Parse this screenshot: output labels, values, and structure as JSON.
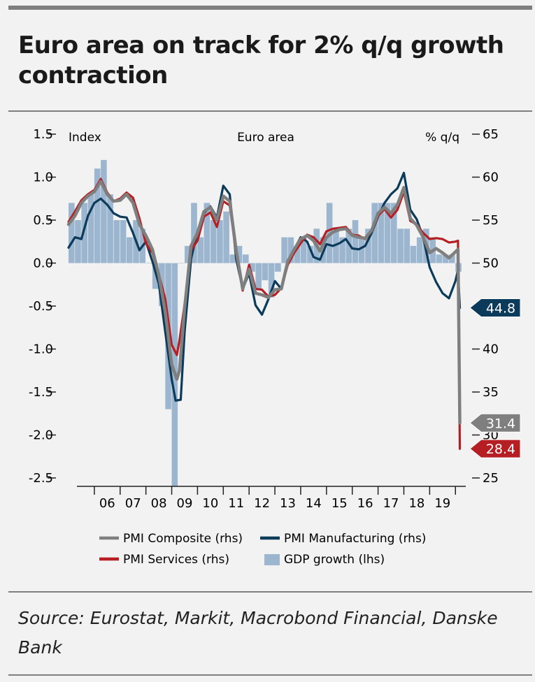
{
  "title": "Euro area on track for 2% q/q growth\ncontraction",
  "source": "Source: Eurostat, Markit, Macrobond Financial, Danske Bank",
  "colors": {
    "composite": "#7f7f7f",
    "manufacturing": "#0b3a5a",
    "services": "#b51f24",
    "gdp": "#9db6cf"
  },
  "chart_data": {
    "type": "line",
    "title": "Euro area",
    "left_axis_label": "Index",
    "right_axis_label": "% q/q",
    "ylim_left": [
      -2.5,
      1.5
    ],
    "ylim_right": [
      25,
      65
    ],
    "yticks_left": [
      {
        "v": 1.5,
        "label": "1.5"
      },
      {
        "v": 1.0,
        "label": "1.0"
      },
      {
        "v": 0.5,
        "label": "0.5"
      },
      {
        "v": 0.0,
        "label": "0.0"
      },
      {
        "v": -0.5,
        "label": "-0.5"
      },
      {
        "v": -1.0,
        "label": "-1.0"
      },
      {
        "v": -1.5,
        "label": "-1.5"
      },
      {
        "v": -2.0,
        "label": "-2.0"
      },
      {
        "v": -2.5,
        "label": "-2.5"
      }
    ],
    "yticks_right": [
      {
        "v": 65,
        "label": "65"
      },
      {
        "v": 60,
        "label": "60"
      },
      {
        "v": 55,
        "label": "55"
      },
      {
        "v": 50,
        "label": "50"
      },
      {
        "v": 45,
        "label": "45"
      },
      {
        "v": 40,
        "label": "40"
      },
      {
        "v": 35,
        "label": "35"
      },
      {
        "v": 30,
        "label": "30"
      },
      {
        "v": 25,
        "label": "25"
      }
    ],
    "x_range": [
      2005.0,
      2020.4
    ],
    "x_ticks": [
      2005,
      2006,
      2007,
      2008,
      2009,
      2010,
      2011,
      2012,
      2013,
      2014,
      2015,
      2016,
      2017,
      2018,
      2019,
      2020
    ],
    "year_labels": [
      "06",
      "07",
      "08",
      "09",
      "10",
      "11",
      "12",
      "13",
      "14",
      "15",
      "16",
      "17",
      "18",
      "19"
    ],
    "series": [
      {
        "name": "PMI Composite (rhs)",
        "key": "composite",
        "axis": "right",
        "points": [
          [
            2005.0,
            54.5
          ],
          [
            2005.25,
            55.5
          ],
          [
            2005.5,
            57.0
          ],
          [
            2005.75,
            57.8
          ],
          [
            2006.0,
            58.3
          ],
          [
            2006.25,
            59.5
          ],
          [
            2006.5,
            58.0
          ],
          [
            2006.75,
            57.2
          ],
          [
            2007.0,
            57.3
          ],
          [
            2007.25,
            58.0
          ],
          [
            2007.5,
            57.0
          ],
          [
            2007.75,
            54.5
          ],
          [
            2008.0,
            53.2
          ],
          [
            2008.25,
            51.6
          ],
          [
            2008.5,
            48.6
          ],
          [
            2008.75,
            44.3
          ],
          [
            2009.0,
            38.2
          ],
          [
            2009.2,
            36.5
          ],
          [
            2009.3,
            37.5
          ],
          [
            2009.5,
            44.8
          ],
          [
            2009.75,
            52.0
          ],
          [
            2010.0,
            53.5
          ],
          [
            2010.25,
            56.0
          ],
          [
            2010.5,
            56.5
          ],
          [
            2010.75,
            55.0
          ],
          [
            2011.0,
            57.8
          ],
          [
            2011.25,
            57.2
          ],
          [
            2011.5,
            51.5
          ],
          [
            2011.75,
            47.0
          ],
          [
            2012.0,
            49.3
          ],
          [
            2012.25,
            46.5
          ],
          [
            2012.5,
            46.3
          ],
          [
            2012.75,
            46.0
          ],
          [
            2013.0,
            46.9
          ],
          [
            2013.25,
            47.0
          ],
          [
            2013.5,
            50.2
          ],
          [
            2013.75,
            51.6
          ],
          [
            2014.0,
            52.8
          ],
          [
            2014.25,
            53.2
          ],
          [
            2014.5,
            52.6
          ],
          [
            2014.75,
            51.4
          ],
          [
            2015.0,
            53.0
          ],
          [
            2015.25,
            53.6
          ],
          [
            2015.5,
            53.9
          ],
          [
            2015.75,
            54.0
          ],
          [
            2016.0,
            53.2
          ],
          [
            2016.25,
            53.0
          ],
          [
            2016.5,
            52.9
          ],
          [
            2016.75,
            53.8
          ],
          [
            2017.0,
            55.8
          ],
          [
            2017.25,
            56.5
          ],
          [
            2017.5,
            55.8
          ],
          [
            2017.75,
            56.8
          ],
          [
            2018.0,
            58.8
          ],
          [
            2018.25,
            55.2
          ],
          [
            2018.5,
            54.4
          ],
          [
            2018.75,
            53.0
          ],
          [
            2019.0,
            51.2
          ],
          [
            2019.25,
            51.7
          ],
          [
            2019.5,
            51.2
          ],
          [
            2019.75,
            50.6
          ],
          [
            2020.0,
            51.3
          ],
          [
            2020.1,
            51.6
          ],
          [
            2020.17,
            31.4
          ]
        ]
      },
      {
        "name": "PMI Manufacturing (rhs)",
        "key": "manufacturing",
        "axis": "right",
        "points": [
          [
            2005.0,
            51.8
          ],
          [
            2005.25,
            53.0
          ],
          [
            2005.5,
            52.8
          ],
          [
            2005.75,
            55.5
          ],
          [
            2006.0,
            57.0
          ],
          [
            2006.25,
            57.5
          ],
          [
            2006.5,
            56.8
          ],
          [
            2006.75,
            55.8
          ],
          [
            2007.0,
            55.4
          ],
          [
            2007.25,
            55.3
          ],
          [
            2007.5,
            53.5
          ],
          [
            2007.75,
            51.5
          ],
          [
            2008.0,
            52.5
          ],
          [
            2008.25,
            50.2
          ],
          [
            2008.5,
            47.6
          ],
          [
            2008.75,
            42.0
          ],
          [
            2009.0,
            36.5
          ],
          [
            2009.15,
            34.0
          ],
          [
            2009.35,
            34.1
          ],
          [
            2009.5,
            42.0
          ],
          [
            2009.75,
            50.5
          ],
          [
            2010.0,
            53.7
          ],
          [
            2010.25,
            55.8
          ],
          [
            2010.5,
            56.6
          ],
          [
            2010.75,
            55.3
          ],
          [
            2011.0,
            59.0
          ],
          [
            2011.25,
            58.0
          ],
          [
            2011.5,
            50.5
          ],
          [
            2011.75,
            47.0
          ],
          [
            2012.0,
            48.8
          ],
          [
            2012.25,
            45.1
          ],
          [
            2012.5,
            44.0
          ],
          [
            2012.75,
            45.8
          ],
          [
            2013.0,
            47.9
          ],
          [
            2013.25,
            47.0
          ],
          [
            2013.5,
            50.3
          ],
          [
            2013.75,
            51.6
          ],
          [
            2014.0,
            53.0
          ],
          [
            2014.25,
            52.5
          ],
          [
            2014.5,
            50.7
          ],
          [
            2014.75,
            50.4
          ],
          [
            2015.0,
            52.2
          ],
          [
            2015.25,
            52.0
          ],
          [
            2015.5,
            52.3
          ],
          [
            2015.75,
            52.8
          ],
          [
            2016.0,
            51.7
          ],
          [
            2016.25,
            51.6
          ],
          [
            2016.5,
            52.0
          ],
          [
            2016.75,
            53.5
          ],
          [
            2017.0,
            55.4
          ],
          [
            2017.25,
            57.0
          ],
          [
            2017.5,
            58.0
          ],
          [
            2017.75,
            58.7
          ],
          [
            2018.0,
            60.5
          ],
          [
            2018.25,
            56.2
          ],
          [
            2018.5,
            55.1
          ],
          [
            2018.75,
            53.0
          ],
          [
            2019.0,
            49.5
          ],
          [
            2019.25,
            47.8
          ],
          [
            2019.5,
            46.5
          ],
          [
            2019.75,
            45.9
          ],
          [
            2020.0,
            47.9
          ],
          [
            2020.1,
            49.2
          ],
          [
            2020.17,
            44.8
          ]
        ]
      },
      {
        "name": "PMI Services (rhs)",
        "key": "services",
        "axis": "right",
        "points": [
          [
            2005.0,
            54.8
          ],
          [
            2005.25,
            56.0
          ],
          [
            2005.5,
            57.3
          ],
          [
            2005.75,
            58.0
          ],
          [
            2006.0,
            58.5
          ],
          [
            2006.25,
            59.8
          ],
          [
            2006.5,
            58.2
          ],
          [
            2006.75,
            57.2
          ],
          [
            2007.0,
            57.5
          ],
          [
            2007.25,
            58.2
          ],
          [
            2007.5,
            57.6
          ],
          [
            2007.75,
            55.2
          ],
          [
            2008.0,
            52.3
          ],
          [
            2008.25,
            51.2
          ],
          [
            2008.5,
            48.7
          ],
          [
            2008.75,
            45.8
          ],
          [
            2009.0,
            40.5
          ],
          [
            2009.2,
            39.3
          ],
          [
            2009.3,
            41.0
          ],
          [
            2009.5,
            45.2
          ],
          [
            2009.75,
            51.5
          ],
          [
            2010.0,
            52.6
          ],
          [
            2010.25,
            55.4
          ],
          [
            2010.5,
            55.9
          ],
          [
            2010.75,
            54.2
          ],
          [
            2011.0,
            57.2
          ],
          [
            2011.25,
            56.7
          ],
          [
            2011.5,
            51.2
          ],
          [
            2011.75,
            46.8
          ],
          [
            2012.0,
            49.8
          ],
          [
            2012.25,
            47.0
          ],
          [
            2012.5,
            46.9
          ],
          [
            2012.75,
            46.1
          ],
          [
            2013.0,
            46.3
          ],
          [
            2013.25,
            47.1
          ],
          [
            2013.5,
            49.8
          ],
          [
            2013.75,
            51.2
          ],
          [
            2014.0,
            52.3
          ],
          [
            2014.25,
            53.3
          ],
          [
            2014.5,
            53.0
          ],
          [
            2014.75,
            52.2
          ],
          [
            2015.0,
            53.7
          ],
          [
            2015.25,
            54.0
          ],
          [
            2015.5,
            54.1
          ],
          [
            2015.75,
            54.2
          ],
          [
            2016.0,
            53.3
          ],
          [
            2016.25,
            53.2
          ],
          [
            2016.5,
            52.8
          ],
          [
            2016.75,
            53.7
          ],
          [
            2017.0,
            55.5
          ],
          [
            2017.25,
            56.3
          ],
          [
            2017.5,
            55.3
          ],
          [
            2017.75,
            56.2
          ],
          [
            2018.0,
            58.3
          ],
          [
            2018.25,
            54.9
          ],
          [
            2018.5,
            54.5
          ],
          [
            2018.75,
            53.5
          ],
          [
            2019.0,
            52.8
          ],
          [
            2019.25,
            52.9
          ],
          [
            2019.5,
            52.8
          ],
          [
            2019.75,
            52.4
          ],
          [
            2020.0,
            52.5
          ],
          [
            2020.1,
            52.6
          ],
          [
            2020.17,
            28.4
          ]
        ]
      }
    ],
    "gdp_growth_lhs": {
      "name": "GDP growth (lhs)",
      "key": "gdp",
      "axis": "left",
      "x_start": 2005.0,
      "step": 0.25,
      "values": [
        0.7,
        0.5,
        0.7,
        0.8,
        1.1,
        1.2,
        0.8,
        0.5,
        0.5,
        0.3,
        0.5,
        0.4,
        0.0,
        -0.3,
        -0.5,
        -1.7,
        -2.6,
        0.0,
        0.2,
        0.7,
        0.3,
        0.7,
        0.5,
        0.5,
        0.6,
        0.1,
        0.2,
        0.1,
        -0.1,
        -0.3,
        -0.2,
        -0.4,
        -0.1,
        0.3,
        0.3,
        0.2,
        0.3,
        0.2,
        0.4,
        0.3,
        0.7,
        0.4,
        0.3,
        0.4,
        0.5,
        0.3,
        0.4,
        0.7,
        0.7,
        0.7,
        0.7,
        0.4,
        0.4,
        0.2,
        0.3,
        0.4,
        0.3,
        0.1,
        0.1,
        0.1
      ],
      "last": -0.1
    },
    "end_labels": [
      {
        "key": "manufacturing",
        "text": "44.8",
        "value": 44.8
      },
      {
        "key": "composite",
        "text": "31.4",
        "value": 31.4
      },
      {
        "key": "services",
        "text": "28.4",
        "value": 28.4
      }
    ],
    "legend": [
      {
        "key": "composite",
        "label": "PMI Composite (rhs)",
        "kind": "line"
      },
      {
        "key": "manufacturing",
        "label": "PMI Manufacturing (rhs)",
        "kind": "line"
      },
      {
        "key": "services",
        "label": "PMI Services (rhs)",
        "kind": "line"
      },
      {
        "key": "gdp",
        "label": "GDP growth (lhs)",
        "kind": "box"
      }
    ],
    "legend_position": "bottom"
  }
}
